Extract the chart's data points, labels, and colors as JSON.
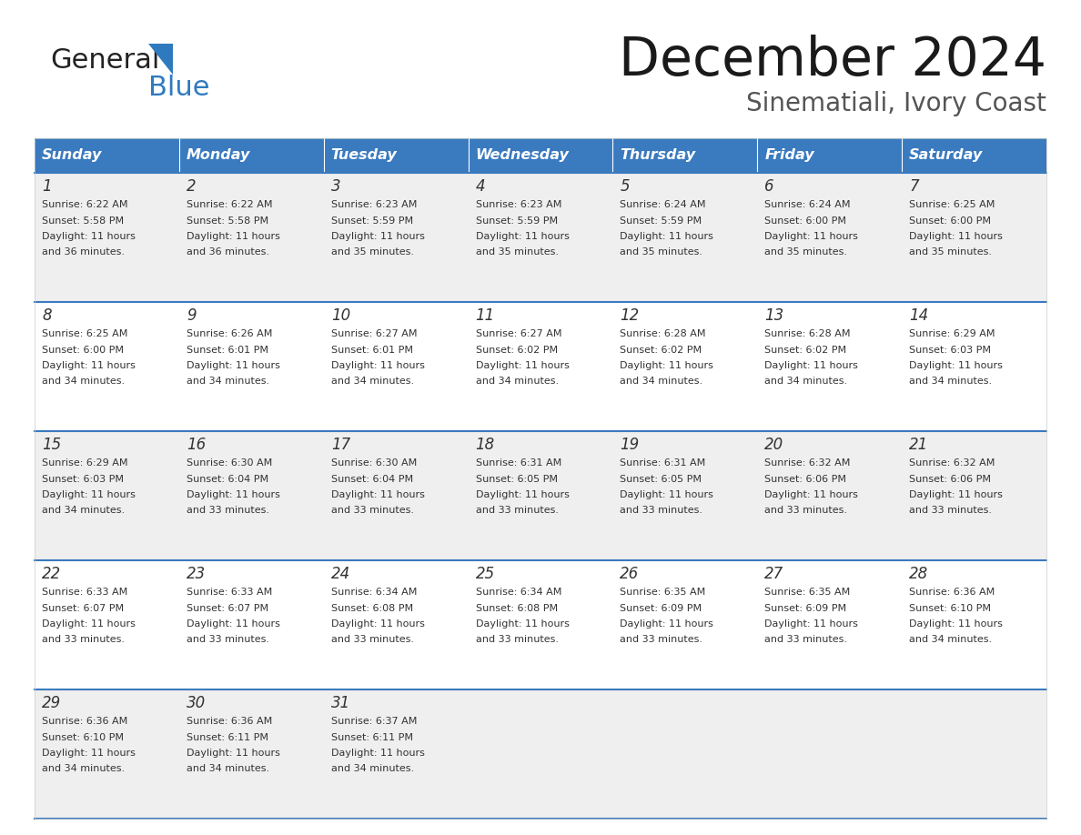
{
  "title": "December 2024",
  "subtitle": "Sinematiali, Ivory Coast",
  "header_color": "#3a7abf",
  "header_text_color": "#ffffff",
  "days_of_week": [
    "Sunday",
    "Monday",
    "Tuesday",
    "Wednesday",
    "Thursday",
    "Friday",
    "Saturday"
  ],
  "bg_color": "#ffffff",
  "cell_bg_even": "#ffffff",
  "cell_bg_odd": "#efefef",
  "divider_color": "#3a7abf",
  "text_color": "#333333",
  "weeks": [
    [
      {
        "day": 1,
        "sunrise": "6:22 AM",
        "sunset": "5:58 PM",
        "daylight": "11 hours and 36 minutes."
      },
      {
        "day": 2,
        "sunrise": "6:22 AM",
        "sunset": "5:58 PM",
        "daylight": "11 hours and 36 minutes."
      },
      {
        "day": 3,
        "sunrise": "6:23 AM",
        "sunset": "5:59 PM",
        "daylight": "11 hours and 35 minutes."
      },
      {
        "day": 4,
        "sunrise": "6:23 AM",
        "sunset": "5:59 PM",
        "daylight": "11 hours and 35 minutes."
      },
      {
        "day": 5,
        "sunrise": "6:24 AM",
        "sunset": "5:59 PM",
        "daylight": "11 hours and 35 minutes."
      },
      {
        "day": 6,
        "sunrise": "6:24 AM",
        "sunset": "6:00 PM",
        "daylight": "11 hours and 35 minutes."
      },
      {
        "day": 7,
        "sunrise": "6:25 AM",
        "sunset": "6:00 PM",
        "daylight": "11 hours and 35 minutes."
      }
    ],
    [
      {
        "day": 8,
        "sunrise": "6:25 AM",
        "sunset": "6:00 PM",
        "daylight": "11 hours and 34 minutes."
      },
      {
        "day": 9,
        "sunrise": "6:26 AM",
        "sunset": "6:01 PM",
        "daylight": "11 hours and 34 minutes."
      },
      {
        "day": 10,
        "sunrise": "6:27 AM",
        "sunset": "6:01 PM",
        "daylight": "11 hours and 34 minutes."
      },
      {
        "day": 11,
        "sunrise": "6:27 AM",
        "sunset": "6:02 PM",
        "daylight": "11 hours and 34 minutes."
      },
      {
        "day": 12,
        "sunrise": "6:28 AM",
        "sunset": "6:02 PM",
        "daylight": "11 hours and 34 minutes."
      },
      {
        "day": 13,
        "sunrise": "6:28 AM",
        "sunset": "6:02 PM",
        "daylight": "11 hours and 34 minutes."
      },
      {
        "day": 14,
        "sunrise": "6:29 AM",
        "sunset": "6:03 PM",
        "daylight": "11 hours and 34 minutes."
      }
    ],
    [
      {
        "day": 15,
        "sunrise": "6:29 AM",
        "sunset": "6:03 PM",
        "daylight": "11 hours and 34 minutes."
      },
      {
        "day": 16,
        "sunrise": "6:30 AM",
        "sunset": "6:04 PM",
        "daylight": "11 hours and 33 minutes."
      },
      {
        "day": 17,
        "sunrise": "6:30 AM",
        "sunset": "6:04 PM",
        "daylight": "11 hours and 33 minutes."
      },
      {
        "day": 18,
        "sunrise": "6:31 AM",
        "sunset": "6:05 PM",
        "daylight": "11 hours and 33 minutes."
      },
      {
        "day": 19,
        "sunrise": "6:31 AM",
        "sunset": "6:05 PM",
        "daylight": "11 hours and 33 minutes."
      },
      {
        "day": 20,
        "sunrise": "6:32 AM",
        "sunset": "6:06 PM",
        "daylight": "11 hours and 33 minutes."
      },
      {
        "day": 21,
        "sunrise": "6:32 AM",
        "sunset": "6:06 PM",
        "daylight": "11 hours and 33 minutes."
      }
    ],
    [
      {
        "day": 22,
        "sunrise": "6:33 AM",
        "sunset": "6:07 PM",
        "daylight": "11 hours and 33 minutes."
      },
      {
        "day": 23,
        "sunrise": "6:33 AM",
        "sunset": "6:07 PM",
        "daylight": "11 hours and 33 minutes."
      },
      {
        "day": 24,
        "sunrise": "6:34 AM",
        "sunset": "6:08 PM",
        "daylight": "11 hours and 33 minutes."
      },
      {
        "day": 25,
        "sunrise": "6:34 AM",
        "sunset": "6:08 PM",
        "daylight": "11 hours and 33 minutes."
      },
      {
        "day": 26,
        "sunrise": "6:35 AM",
        "sunset": "6:09 PM",
        "daylight": "11 hours and 33 minutes."
      },
      {
        "day": 27,
        "sunrise": "6:35 AM",
        "sunset": "6:09 PM",
        "daylight": "11 hours and 33 minutes."
      },
      {
        "day": 28,
        "sunrise": "6:36 AM",
        "sunset": "6:10 PM",
        "daylight": "11 hours and 34 minutes."
      }
    ],
    [
      {
        "day": 29,
        "sunrise": "6:36 AM",
        "sunset": "6:10 PM",
        "daylight": "11 hours and 34 minutes."
      },
      {
        "day": 30,
        "sunrise": "6:36 AM",
        "sunset": "6:11 PM",
        "daylight": "11 hours and 34 minutes."
      },
      {
        "day": 31,
        "sunrise": "6:37 AM",
        "sunset": "6:11 PM",
        "daylight": "11 hours and 34 minutes."
      },
      null,
      null,
      null,
      null
    ]
  ]
}
